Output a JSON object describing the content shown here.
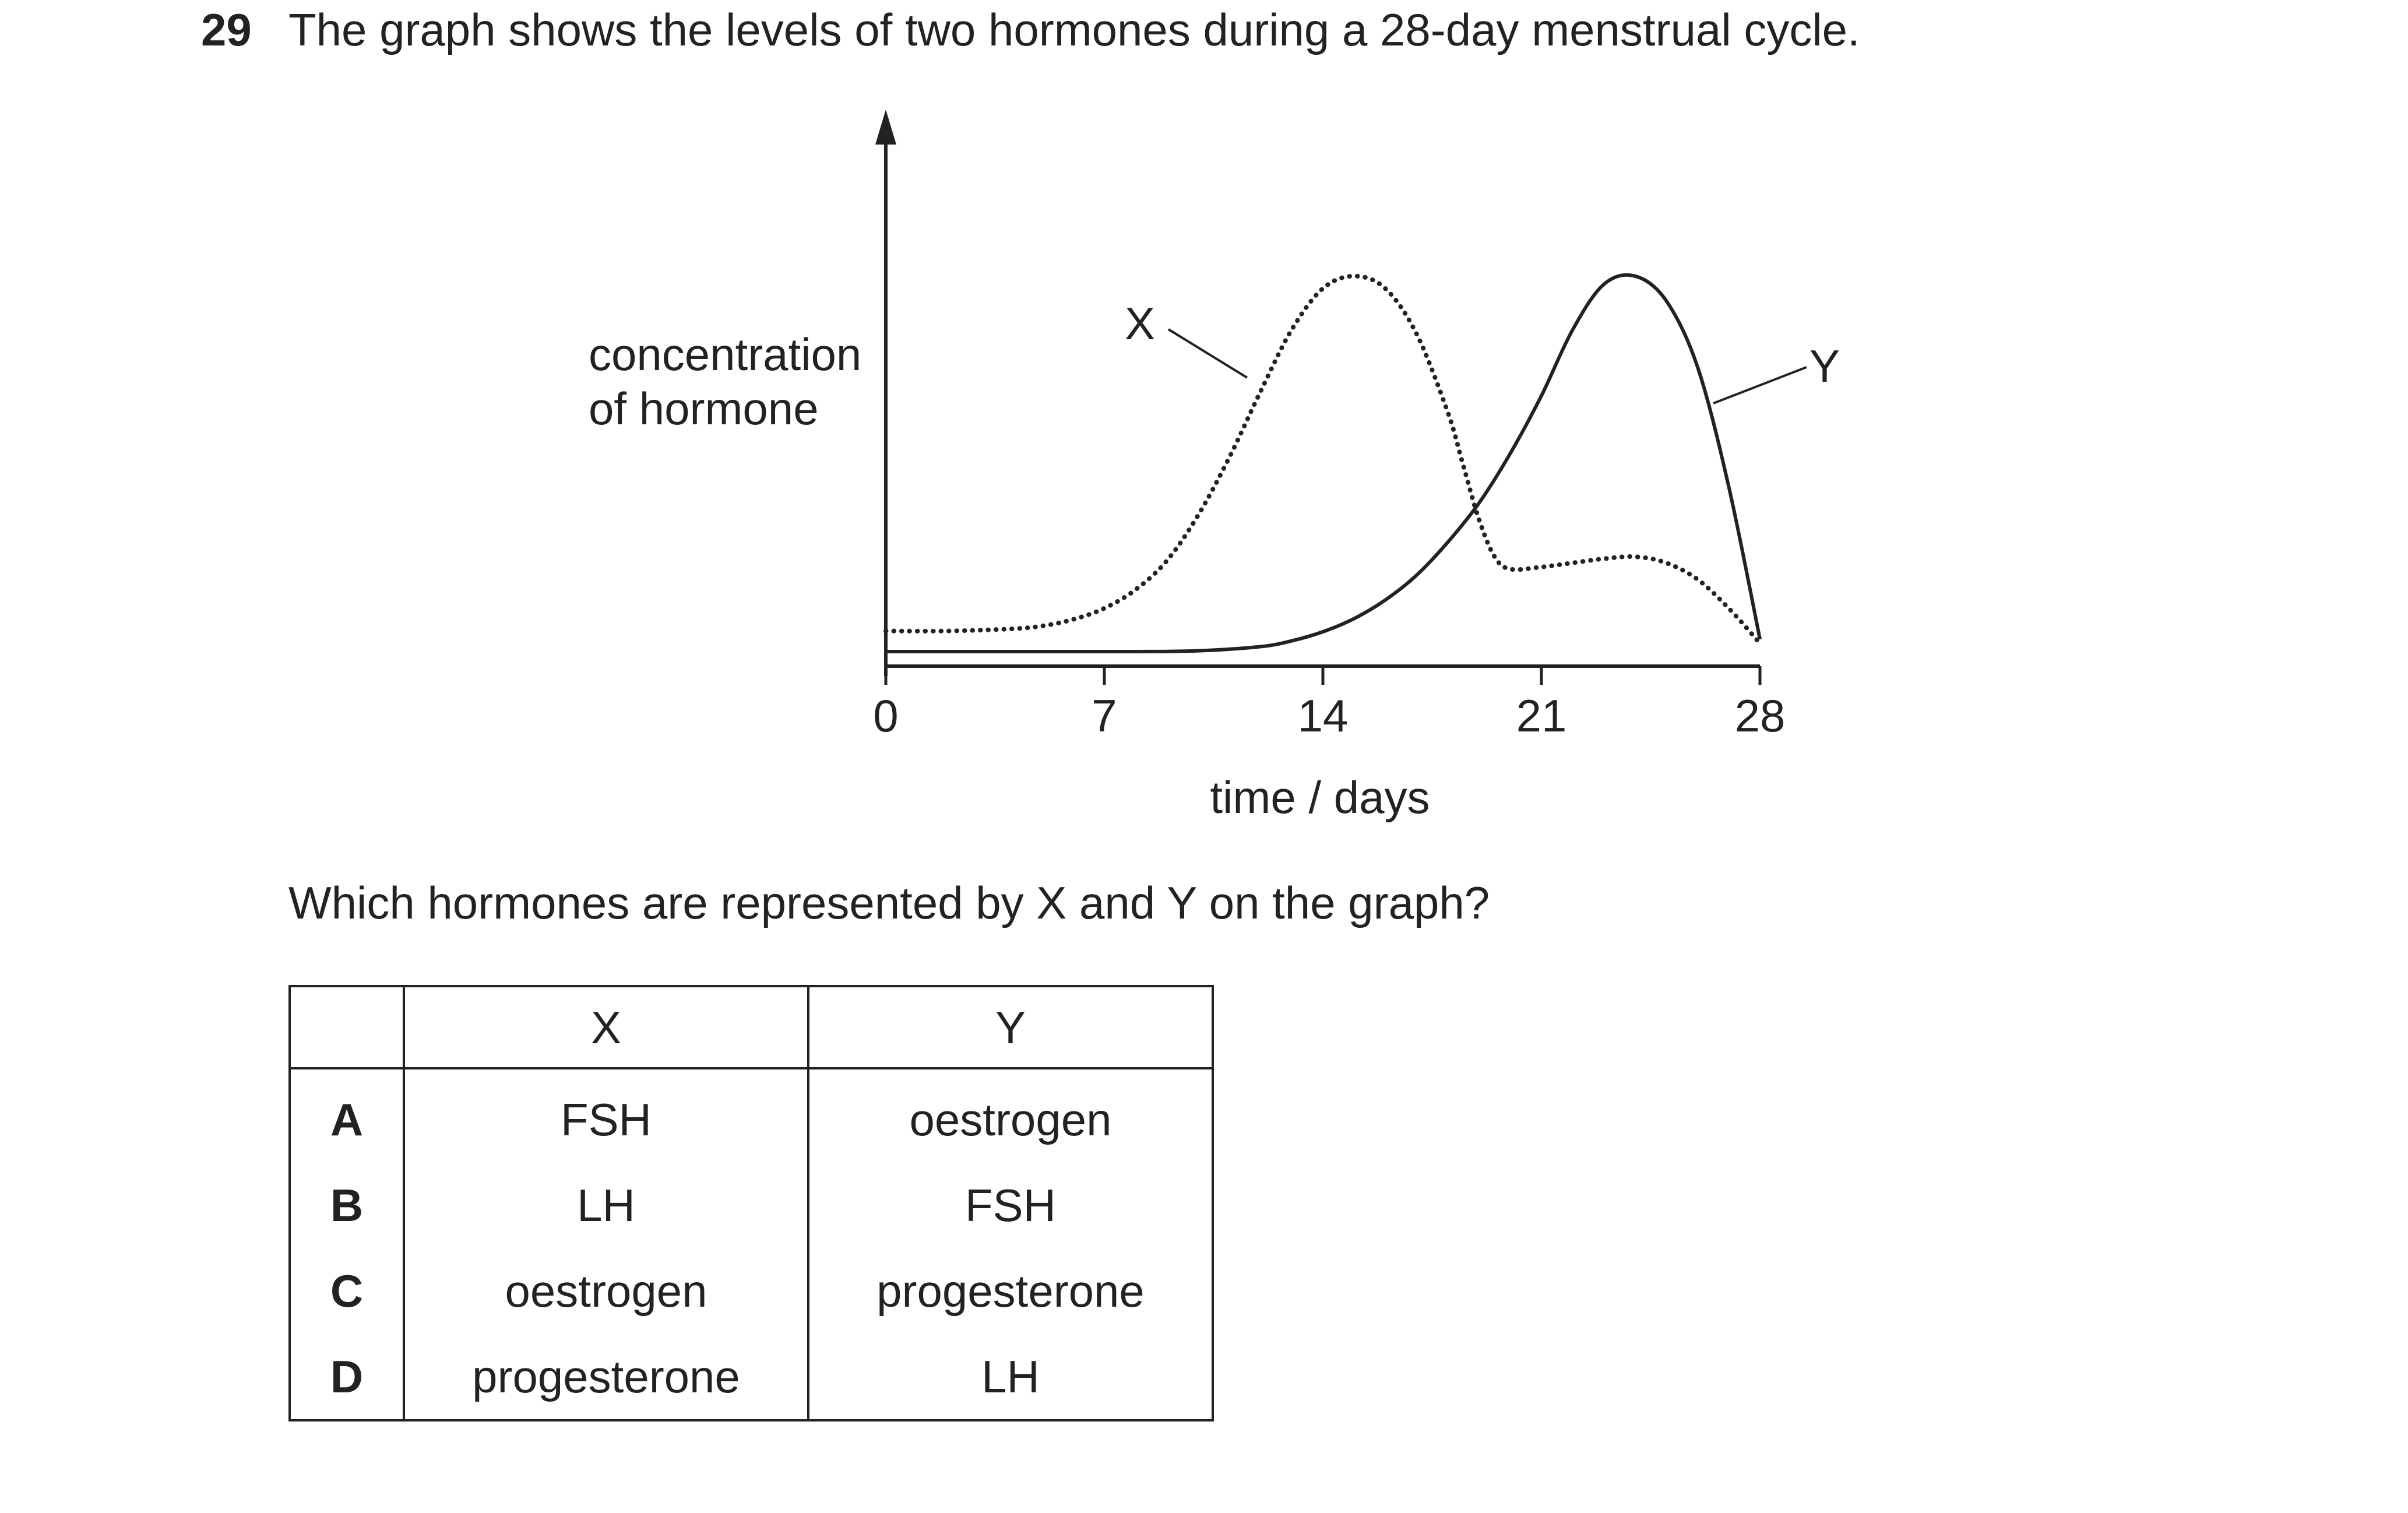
{
  "question": {
    "number": "29",
    "stem": "The graph shows the levels of two hormones during a 28-day menstrual cycle.",
    "prompt": "Which hormones are represented by X and Y on the graph?"
  },
  "chart_data": {
    "type": "line",
    "title": "",
    "ylabel_line1": "concentration",
    "ylabel_line2": "of hormone",
    "xlabel": "time / days",
    "xlim": [
      0,
      28
    ],
    "ylim": [
      0,
      10
    ],
    "xticks": [
      "0",
      "7",
      "14",
      "21",
      "28"
    ],
    "grid": false,
    "series": [
      {
        "name": "X",
        "style": "dotted",
        "x": [
          0,
          2,
          4,
          5,
          6,
          7,
          8,
          9,
          10,
          11,
          12,
          13,
          14,
          15,
          16,
          17,
          18,
          18.5,
          19,
          19.5,
          20,
          21,
          22,
          23,
          24,
          25,
          26,
          27,
          28
        ],
        "y": [
          0.5,
          0.5,
          0.55,
          0.62,
          0.78,
          1.05,
          1.5,
          2.2,
          3.3,
          4.7,
          6.3,
          7.8,
          8.8,
          9.1,
          8.8,
          7.7,
          5.8,
          4.5,
          3.2,
          2.3,
          2.0,
          2.05,
          2.15,
          2.25,
          2.3,
          2.15,
          1.75,
          1.05,
          0.2
        ]
      },
      {
        "name": "Y",
        "style": "solid",
        "x": [
          0,
          4,
          8,
          10,
          12,
          13,
          14,
          15,
          16,
          17,
          18,
          19,
          20,
          21,
          22,
          23,
          24,
          25,
          26,
          27,
          28
        ],
        "y": [
          0,
          0,
          0,
          0.02,
          0.12,
          0.26,
          0.48,
          0.8,
          1.25,
          1.85,
          2.65,
          3.6,
          4.8,
          6.2,
          7.8,
          8.9,
          9.1,
          8.5,
          6.9,
          4.0,
          0.3
        ]
      }
    ],
    "series_labels": [
      "X",
      "Y"
    ]
  },
  "table": {
    "headers": [
      "",
      "X",
      "Y"
    ],
    "rows": [
      {
        "letter": "A",
        "x": "FSH",
        "y": "oestrogen"
      },
      {
        "letter": "B",
        "x": "LH",
        "y": "FSH"
      },
      {
        "letter": "C",
        "x": "oestrogen",
        "y": "progesterone"
      },
      {
        "letter": "D",
        "x": "progesterone",
        "y": "LH"
      }
    ]
  }
}
